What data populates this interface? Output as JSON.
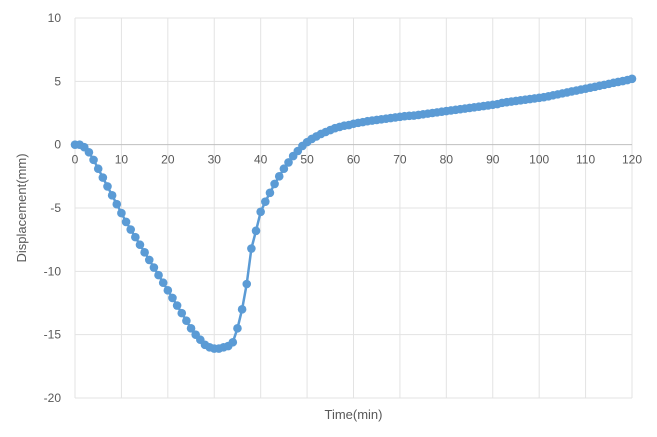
{
  "chart_data": {
    "type": "line",
    "title": "",
    "xlabel": "Time(min)",
    "ylabel": "Displacement(mm)",
    "xlim": [
      0,
      120
    ],
    "ylim": [
      -20,
      10
    ],
    "xticks": [
      0,
      10,
      20,
      30,
      40,
      50,
      60,
      70,
      80,
      90,
      100,
      110,
      120
    ],
    "yticks": [
      10,
      5,
      0,
      -5,
      -10,
      -15,
      -20
    ],
    "grid": true,
    "legend": "none",
    "series": [
      {
        "color": "#5b9bd5",
        "marker": "circle",
        "x": [
          0,
          1,
          2,
          3,
          4,
          5,
          6,
          7,
          8,
          9,
          10,
          11,
          12,
          13,
          14,
          15,
          16,
          17,
          18,
          19,
          20,
          21,
          22,
          23,
          24,
          25,
          26,
          27,
          28,
          29,
          30,
          31,
          32,
          33,
          34,
          35,
          36,
          37,
          38,
          39,
          40,
          41,
          42,
          43,
          44,
          45,
          46,
          47,
          48,
          49,
          50,
          51,
          52,
          53,
          54,
          55,
          56,
          57,
          58,
          59,
          60,
          61,
          62,
          63,
          64,
          65,
          66,
          67,
          68,
          69,
          70,
          71,
          72,
          73,
          74,
          75,
          76,
          77,
          78,
          79,
          80,
          81,
          82,
          83,
          84,
          85,
          86,
          87,
          88,
          89,
          90,
          91,
          92,
          93,
          94,
          95,
          96,
          97,
          98,
          99,
          100,
          101,
          102,
          103,
          104,
          105,
          106,
          107,
          108,
          109,
          110,
          111,
          112,
          113,
          114,
          115,
          116,
          117,
          118,
          119,
          120
        ],
        "y": [
          0,
          0,
          -0.2,
          -0.6,
          -1.2,
          -1.9,
          -2.6,
          -3.3,
          -4.0,
          -4.7,
          -5.4,
          -6.1,
          -6.7,
          -7.3,
          -7.9,
          -8.5,
          -9.1,
          -9.7,
          -10.3,
          -10.9,
          -11.5,
          -12.1,
          -12.7,
          -13.3,
          -13.9,
          -14.5,
          -15.0,
          -15.4,
          -15.8,
          -16.0,
          -16.1,
          -16.1,
          -16.0,
          -15.9,
          -15.6,
          -14.5,
          -13.0,
          -11.0,
          -8.2,
          -6.8,
          -5.3,
          -4.5,
          -3.8,
          -3.1,
          -2.5,
          -1.9,
          -1.4,
          -0.9,
          -0.5,
          -0.1,
          0.2,
          0.45,
          0.65,
          0.85,
          1.0,
          1.15,
          1.3,
          1.4,
          1.5,
          1.55,
          1.65,
          1.72,
          1.78,
          1.85,
          1.9,
          1.95,
          2.0,
          2.05,
          2.1,
          2.15,
          2.2,
          2.25,
          2.28,
          2.3,
          2.35,
          2.4,
          2.45,
          2.5,
          2.55,
          2.6,
          2.65,
          2.7,
          2.75,
          2.8,
          2.85,
          2.9,
          2.95,
          3.0,
          3.05,
          3.1,
          3.15,
          3.2,
          3.3,
          3.35,
          3.4,
          3.45,
          3.5,
          3.55,
          3.6,
          3.65,
          3.7,
          3.75,
          3.82,
          3.9,
          3.97,
          4.05,
          4.12,
          4.2,
          4.27,
          4.35,
          4.42,
          4.5,
          4.57,
          4.65,
          4.72,
          4.8,
          4.88,
          4.95,
          5.02,
          5.1,
          5.2
        ]
      }
    ]
  }
}
